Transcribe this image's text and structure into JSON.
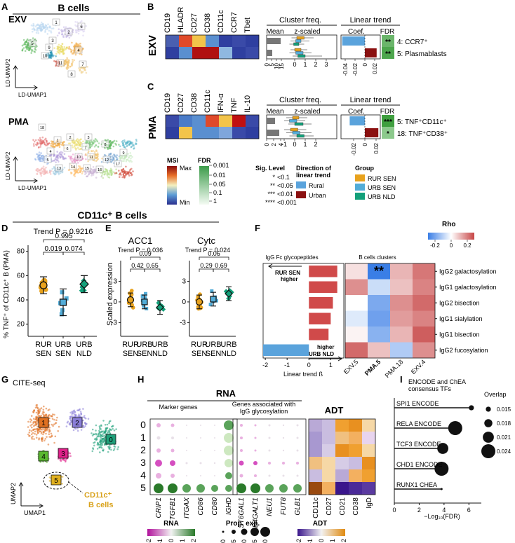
{
  "panel_letters": [
    "A",
    "B",
    "C",
    "D",
    "E",
    "F",
    "G",
    "H",
    "I"
  ],
  "A": {
    "title": "B cells",
    "exv": "EXV",
    "pma": "PMA",
    "xlabel": "LD-UMAP1",
    "ylabel": "LD-UMAP2",
    "exv_clusters": [
      "1",
      "2",
      "3",
      "4",
      "5",
      "6",
      "7",
      "8",
      "9",
      "10",
      "11"
    ],
    "pma_clusters": [
      "1",
      "2",
      "3",
      "4",
      "5",
      "6",
      "7",
      "8",
      "9",
      "10",
      "11",
      "12",
      "13",
      "14",
      "15",
      "16",
      "17",
      "18"
    ]
  },
  "B": {
    "row_label": "EXV",
    "markers": [
      "CD19",
      "HLADR",
      "CD27",
      "CD38",
      "CD11c",
      "CCR7",
      "Tbet"
    ],
    "cluster_freq": "Cluster freq.",
    "mean": "Mean",
    "zscaled": "z-scaled",
    "linear_trend": "Linear trend",
    "coef": "Coef.",
    "fdr": "FDR",
    "rows": [
      {
        "label": "4: CCR7⁺",
        "stars": "**"
      },
      {
        "label": "5: Plasmablasts",
        "stars": "**"
      }
    ],
    "mean_ticks": [
      "0",
      "5",
      "10",
      "15"
    ],
    "z_ticks": [
      "0",
      "1",
      "2",
      "3"
    ],
    "coef_ticks": [
      "-0.04",
      "-0.02",
      "0",
      "0.02"
    ]
  },
  "C": {
    "row_label": "PMA",
    "markers": [
      "CD19",
      "CD27",
      "CD38",
      "CD11c",
      "IFN-α",
      "TNF",
      "IL-10"
    ],
    "rows": [
      {
        "label": "5: TNF⁺CD11c⁺",
        "stars": "***"
      },
      {
        "label": "18: TNF⁺CD38⁺",
        "stars": "*"
      }
    ],
    "mean_ticks": [
      "0",
      "2",
      "4"
    ],
    "z_ticks": [
      "-1",
      "0",
      "1",
      "2"
    ],
    "coef_ticks": [
      "-0.02",
      "0",
      "0.02"
    ]
  },
  "legend": {
    "msi": "MSI",
    "msi_max": "Max",
    "msi_min": "Min",
    "fdr": "FDR",
    "fdr_ticks": [
      "0.001",
      "0.01",
      "0.05",
      "0.1",
      "1"
    ],
    "sig_title": "Sig. Level",
    "sig": [
      [
        "*",
        "<0.1"
      ],
      [
        "**",
        "<0.05"
      ],
      [
        "***",
        "<0.01"
      ],
      [
        "****",
        "<0.001"
      ]
    ],
    "dir_title1": "Direction of",
    "dir_title2": "linear trend",
    "rural": "Rural",
    "urban": "Urban",
    "group_title": "Group",
    "groups": [
      "RUR SEN",
      "URB SEN",
      "URB NLD"
    ],
    "colors": {
      "rur_sen": "#e8a21d",
      "urb_sen": "#52acd8",
      "urb_nld": "#13a07a",
      "rural": "#5aa3dc",
      "urban": "#8b1010"
    }
  },
  "section_title": "CD11c⁺ B cells",
  "D": {
    "trend": "Trend P = 0.9216",
    "ylabel": "% TNF⁺ of CD11c⁺ B (PMA)",
    "yticks": [
      "20",
      "40",
      "60",
      "80"
    ],
    "pvals": [
      "0.995",
      "0.019",
      "0.074"
    ],
    "groups": [
      [
        "RUR",
        "SEN"
      ],
      [
        "URB",
        "SEN"
      ],
      [
        "URB",
        "NLD"
      ]
    ]
  },
  "E": {
    "titles": [
      "ACC1",
      "Cytc"
    ],
    "trends": [
      "Trend P = 0.036",
      "Trend P = 0.024"
    ],
    "ylabel": "Scaled expression",
    "yticks": [
      "-3",
      "0",
      "3"
    ],
    "pvals_acc1": [
      "0.09",
      "0.42",
      "0.65"
    ],
    "pvals_cytc": [
      "0.06",
      "0.29",
      "0.69"
    ]
  },
  "F": {
    "rho": "Rho",
    "rho_ticks": [
      "-0.2",
      "0",
      "0.2"
    ],
    "left_title": "IgG Fc glycopeptides",
    "right_title": "B cells clusters",
    "rur_higher": [
      "RUR SEN",
      "higher"
    ],
    "urb_higher": [
      "URB NLD",
      "higher"
    ],
    "xlabel": "Linear trend ß",
    "xticks": [
      "-2",
      "-1",
      "0",
      "1"
    ],
    "stars": "**",
    "rows": [
      "IgG2 galactosylation",
      "IgG1 galactosylation",
      "IgG2 bisection",
      "IgG1 sialylation",
      "IgG1 bisection",
      "IgG2 fucosylation"
    ],
    "cols": [
      "EXV.5",
      "PMA.5",
      "PMA.18",
      "EXV.4"
    ]
  },
  "G": {
    "title": "CITE-seq",
    "xlabel": "UMAP1",
    "ylabel": "UMAP2",
    "clusters": [
      "0",
      "1",
      "2",
      "3",
      "4",
      "5"
    ],
    "annot": [
      "CD11c⁺",
      "B cells"
    ]
  },
  "H": {
    "rna": "RNA",
    "adt": "ADT",
    "marker_genes": "Marker genes",
    "glyco1": "Genes associated with",
    "glyco2": "IgG glycosylation",
    "rows": [
      "0",
      "1",
      "2",
      "3",
      "4",
      "5"
    ],
    "genes1": [
      "CRIP1",
      "TGFB1",
      "ITGAX",
      "CD86",
      "CD80",
      "IGHD"
    ],
    "genes2": [
      "ST6GAL1",
      "B4GALT1",
      "NEU1",
      "FUT8",
      "GLB1"
    ],
    "adt_cols": [
      "CD11c",
      "CD27",
      "CD21",
      "CD38",
      "IgD"
    ],
    "rna_legend": "RNA",
    "prop_legend": "Prop. exp.",
    "adt_legend": "ADT",
    "rna_ticks": [
      "-2",
      "-1",
      "0",
      "1",
      "2"
    ],
    "prop_ticks": [
      "0",
      "0.25",
      "0.50",
      "0.75",
      "1.00"
    ],
    "adt_ticks": [
      "-2",
      "-1",
      "0",
      "1",
      "2"
    ]
  },
  "I": {
    "title1": "ENCODE and ChEA",
    "title2": "consensus TFs",
    "overlap": "Overlap",
    "xlabel": "−Log₁₀(FDR)",
    "xticks": [
      "0",
      "2",
      "4",
      "6"
    ],
    "overlap_ticks": [
      "0.015",
      "0.018",
      "0.021",
      "0.024"
    ],
    "chart_data": {
      "type": "lollipop",
      "categories": [
        "SPI1 ENCODE",
        "RELA ENCODE",
        "TCF3 ENCODE",
        "CHD1 ENCODE",
        "RUNX1 CHEA"
      ],
      "values": [
        6.2,
        4.9,
        3.9,
        3.8,
        3.8
      ],
      "overlap": [
        0.015,
        0.024,
        0.021,
        0.024,
        0.012
      ],
      "xlim": [
        0,
        7
      ]
    }
  }
}
